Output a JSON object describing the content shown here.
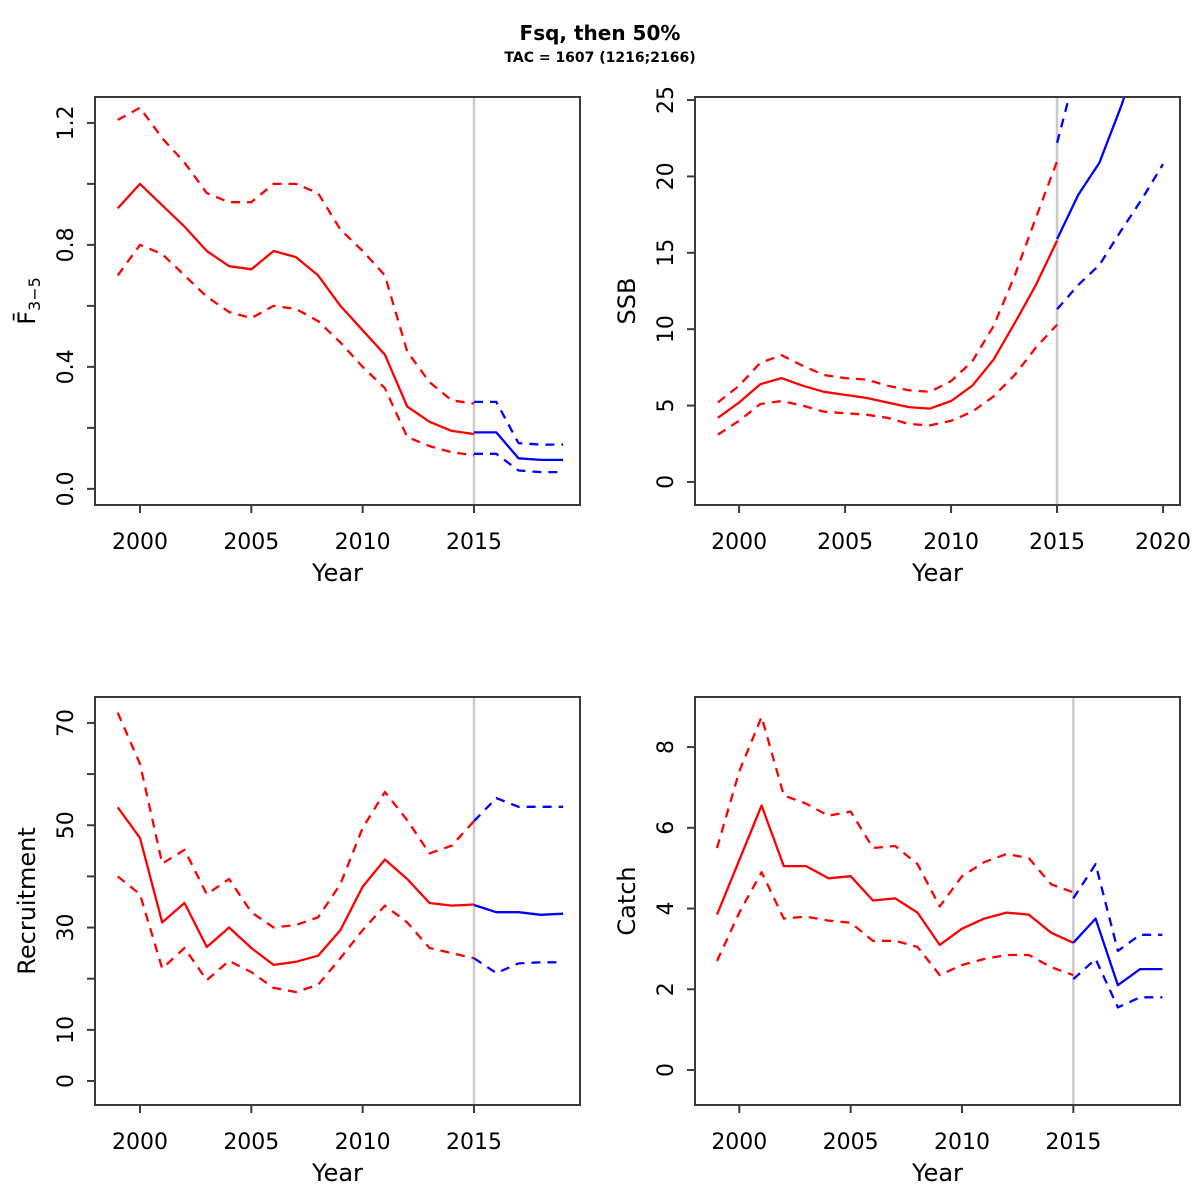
{
  "figure": {
    "title": "Fsq, then 50%",
    "subtitle": "TAC = 1607 (1216;2166)",
    "colors": {
      "historical": "#ff0000",
      "projection": "#0000ff",
      "forecast_divider": "#cbcbcb",
      "axis": "#3a3a3a"
    }
  },
  "chart_data": [
    {
      "id": "fbar",
      "type": "line",
      "xlabel": "Year",
      "ylabel": "F̄",
      "ylabel_sub": "3−5",
      "xlim": [
        1997.98,
        2019.76
      ],
      "ylim": [
        -0.053,
        1.285
      ],
      "vline_x": 2015,
      "xticks": [
        {
          "v": 2000,
          "label": "2000"
        },
        {
          "v": 2005,
          "label": "2005"
        },
        {
          "v": 2010,
          "label": "2010"
        },
        {
          "v": 2015,
          "label": "2015"
        }
      ],
      "yticks": [
        {
          "v": 0,
          "label": "0.0"
        },
        {
          "v": 0.2,
          "label": ""
        },
        {
          "v": 0.4,
          "label": "0.4"
        },
        {
          "v": 0.6,
          "label": ""
        },
        {
          "v": 0.8,
          "label": "0.8"
        },
        {
          "v": 1.0,
          "label": ""
        },
        {
          "v": 1.2,
          "label": "1.2"
        }
      ],
      "series": [
        {
          "name": "median-historical",
          "color": "#ff0000",
          "dash": false,
          "x": [
            1999,
            2000,
            2001,
            2002,
            2003,
            2004,
            2005,
            2006,
            2007,
            2008,
            2009,
            2010,
            2011,
            2012,
            2013,
            2014,
            2015
          ],
          "y": [
            0.92,
            1.0,
            0.93,
            0.86,
            0.78,
            0.73,
            0.72,
            0.78,
            0.76,
            0.7,
            0.6,
            0.52,
            0.44,
            0.27,
            0.22,
            0.19,
            0.18
          ]
        },
        {
          "name": "ci-upper-historical",
          "color": "#ff0000",
          "dash": true,
          "x": [
            1999,
            2000,
            2001,
            2002,
            2003,
            2004,
            2005,
            2006,
            2007,
            2008,
            2009,
            2010,
            2011,
            2012,
            2013,
            2014,
            2015
          ],
          "y": [
            1.21,
            1.25,
            1.15,
            1.07,
            0.97,
            0.94,
            0.94,
            1.0,
            1.0,
            0.97,
            0.85,
            0.78,
            0.7,
            0.45,
            0.35,
            0.29,
            0.28
          ]
        },
        {
          "name": "ci-lower-historical",
          "color": "#ff0000",
          "dash": true,
          "x": [
            1999,
            2000,
            2001,
            2002,
            2003,
            2004,
            2005,
            2006,
            2007,
            2008,
            2009,
            2010,
            2011,
            2012,
            2013,
            2014,
            2015
          ],
          "y": [
            0.7,
            0.8,
            0.77,
            0.7,
            0.63,
            0.58,
            0.56,
            0.6,
            0.59,
            0.55,
            0.48,
            0.4,
            0.33,
            0.17,
            0.14,
            0.12,
            0.11
          ]
        },
        {
          "name": "median-projection",
          "color": "#0000ff",
          "dash": false,
          "x": [
            2015,
            2016,
            2017,
            2018,
            2019
          ],
          "y": [
            0.185,
            0.185,
            0.1,
            0.095,
            0.095
          ]
        },
        {
          "name": "ci-upper-projection",
          "color": "#0000ff",
          "dash": true,
          "x": [
            2015,
            2016,
            2017,
            2018,
            2019
          ],
          "y": [
            0.285,
            0.285,
            0.15,
            0.145,
            0.145
          ]
        },
        {
          "name": "ci-lower-projection",
          "color": "#0000ff",
          "dash": true,
          "x": [
            2015,
            2016,
            2017,
            2018,
            2019
          ],
          "y": [
            0.115,
            0.115,
            0.06,
            0.055,
            0.055
          ]
        }
      ]
    },
    {
      "id": "ssb",
      "type": "line",
      "xlabel": "Year",
      "ylabel": "SSB",
      "xlim": [
        1997.92,
        2020.8
      ],
      "ylim": [
        -1.51,
        25.2
      ],
      "vline_x": 2015,
      "xticks": [
        {
          "v": 2000,
          "label": "2000"
        },
        {
          "v": 2005,
          "label": "2005"
        },
        {
          "v": 2010,
          "label": "2010"
        },
        {
          "v": 2015,
          "label": "2015"
        },
        {
          "v": 2020,
          "label": "2020"
        }
      ],
      "yticks": [
        {
          "v": 0,
          "label": "0"
        },
        {
          "v": 5,
          "label": "5"
        },
        {
          "v": 10,
          "label": "10"
        },
        {
          "v": 15,
          "label": "15"
        },
        {
          "v": 20,
          "label": "20"
        },
        {
          "v": 25,
          "label": "25"
        }
      ],
      "series": [
        {
          "name": "median-historical",
          "color": "#ff0000",
          "dash": false,
          "x": [
            1999,
            2000,
            2001,
            2002,
            2003,
            2004,
            2005,
            2006,
            2007,
            2008,
            2009,
            2010,
            2011,
            2012,
            2013,
            2014,
            2015
          ],
          "y": [
            4.2,
            5.2,
            6.4,
            6.8,
            6.3,
            5.9,
            5.7,
            5.5,
            5.2,
            4.9,
            4.8,
            5.3,
            6.3,
            8.0,
            10.4,
            12.9,
            15.8
          ]
        },
        {
          "name": "ci-upper-historical",
          "color": "#ff0000",
          "dash": true,
          "x": [
            1999,
            2000,
            2001,
            2002,
            2003,
            2004,
            2005,
            2006,
            2007,
            2008,
            2009,
            2010,
            2011,
            2012,
            2013,
            2014,
            2015
          ],
          "y": [
            5.2,
            6.3,
            7.8,
            8.3,
            7.6,
            7.0,
            6.8,
            6.7,
            6.3,
            6.0,
            5.9,
            6.6,
            7.9,
            10.2,
            13.5,
            17.3,
            21.0
          ]
        },
        {
          "name": "ci-lower-historical",
          "color": "#ff0000",
          "dash": true,
          "x": [
            1999,
            2000,
            2001,
            2002,
            2003,
            2004,
            2005,
            2006,
            2007,
            2008,
            2009,
            2010,
            2011,
            2012,
            2013,
            2014,
            2015
          ],
          "y": [
            3.1,
            4.0,
            5.1,
            5.3,
            5.0,
            4.6,
            4.5,
            4.4,
            4.2,
            3.8,
            3.7,
            4.0,
            4.6,
            5.6,
            7.0,
            8.8,
            10.3
          ]
        },
        {
          "name": "median-projection",
          "color": "#0000ff",
          "dash": false,
          "x": [
            2015,
            2016,
            2017,
            2018,
            2019
          ],
          "y": [
            15.9,
            18.8,
            20.9,
            24.5,
            28.5
          ]
        },
        {
          "name": "ci-upper-projection",
          "color": "#0000ff",
          "dash": true,
          "x": [
            2015,
            2016
          ],
          "y": [
            22.2,
            27.5
          ]
        },
        {
          "name": "ci-lower-projection",
          "color": "#0000ff",
          "dash": true,
          "x": [
            2015,
            2016,
            2017,
            2018,
            2019,
            2020
          ],
          "y": [
            11.3,
            12.9,
            14.2,
            16.4,
            18.5,
            20.8
          ]
        }
      ]
    },
    {
      "id": "recruitment",
      "type": "line",
      "xlabel": "Year",
      "ylabel": "Recruitment",
      "xlim": [
        1997.98,
        2019.76
      ],
      "ylim": [
        -4.69,
        75.07
      ],
      "vline_x": 2015,
      "xticks": [
        {
          "v": 2000,
          "label": "2000"
        },
        {
          "v": 2005,
          "label": "2005"
        },
        {
          "v": 2010,
          "label": "2010"
        },
        {
          "v": 2015,
          "label": "2015"
        }
      ],
      "yticks": [
        {
          "v": 0,
          "label": "0"
        },
        {
          "v": 10,
          "label": "10"
        },
        {
          "v": 20,
          "label": ""
        },
        {
          "v": 30,
          "label": "30"
        },
        {
          "v": 40,
          "label": ""
        },
        {
          "v": 50,
          "label": "50"
        },
        {
          "v": 60,
          "label": ""
        },
        {
          "v": 70,
          "label": "70"
        }
      ],
      "series": [
        {
          "name": "median-historical",
          "color": "#ff0000",
          "dash": false,
          "x": [
            1999,
            2000,
            2001,
            2002,
            2003,
            2004,
            2005,
            2006,
            2007,
            2008,
            2009,
            2010,
            2011,
            2012,
            2013,
            2014,
            2015
          ],
          "y": [
            53.5,
            47.5,
            31.0,
            34.8,
            26.2,
            30.0,
            26.0,
            22.7,
            23.3,
            24.5,
            29.5,
            38.0,
            43.3,
            39.5,
            34.8,
            34.3,
            34.5
          ]
        },
        {
          "name": "ci-upper-historical",
          "color": "#ff0000",
          "dash": true,
          "x": [
            1999,
            2000,
            2001,
            2002,
            2003,
            2004,
            2005,
            2006,
            2007,
            2008,
            2009,
            2010,
            2011,
            2012,
            2013,
            2014,
            2015
          ],
          "y": [
            72.0,
            62.0,
            42.5,
            45.2,
            36.5,
            39.5,
            33.0,
            30.0,
            30.5,
            32.0,
            38.5,
            49.5,
            56.5,
            51.0,
            44.5,
            46.0,
            50.8
          ]
        },
        {
          "name": "ci-lower-historical",
          "color": "#ff0000",
          "dash": true,
          "x": [
            1999,
            2000,
            2001,
            2002,
            2003,
            2004,
            2005,
            2006,
            2007,
            2008,
            2009,
            2010,
            2011,
            2012,
            2013,
            2014,
            2015
          ],
          "y": [
            40.0,
            36.5,
            22.0,
            26.0,
            19.7,
            23.5,
            21.3,
            18.2,
            17.4,
            18.8,
            24.0,
            29.5,
            34.3,
            31.0,
            26.0,
            25.0,
            24.0
          ]
        },
        {
          "name": "median-projection",
          "color": "#0000ff",
          "dash": false,
          "x": [
            2015,
            2016,
            2017,
            2018,
            2019
          ],
          "y": [
            34.4,
            33.0,
            33.0,
            32.5,
            32.7
          ]
        },
        {
          "name": "ci-upper-projection",
          "color": "#0000ff",
          "dash": true,
          "x": [
            2015,
            2016,
            2017,
            2018,
            2019
          ],
          "y": [
            50.8,
            55.3,
            53.6,
            53.6,
            53.6
          ]
        },
        {
          "name": "ci-lower-projection",
          "color": "#0000ff",
          "dash": true,
          "x": [
            2015,
            2016,
            2017,
            2018,
            2019
          ],
          "y": [
            24.0,
            21.1,
            23.0,
            23.2,
            23.2
          ]
        }
      ]
    },
    {
      "id": "catch",
      "type": "line",
      "xlabel": "Year",
      "ylabel": "Catch",
      "xlim": [
        1998.01,
        2019.79
      ],
      "ylim": [
        -0.867,
        9.24
      ],
      "vline_x": 2015,
      "xticks": [
        {
          "v": 2000,
          "label": "2000"
        },
        {
          "v": 2005,
          "label": "2005"
        },
        {
          "v": 2010,
          "label": "2010"
        },
        {
          "v": 2015,
          "label": "2015"
        }
      ],
      "yticks": [
        {
          "v": 0,
          "label": "0"
        },
        {
          "v": 2,
          "label": "2"
        },
        {
          "v": 4,
          "label": "4"
        },
        {
          "v": 6,
          "label": "6"
        },
        {
          "v": 8,
          "label": "8"
        }
      ],
      "series": [
        {
          "name": "median-historical",
          "color": "#ff0000",
          "dash": false,
          "x": [
            1999,
            2000,
            2001,
            2002,
            2003,
            2004,
            2005,
            2006,
            2007,
            2008,
            2009,
            2010,
            2011,
            2012,
            2013,
            2014,
            2015
          ],
          "y": [
            3.85,
            5.2,
            6.55,
            5.05,
            5.05,
            4.75,
            4.8,
            4.2,
            4.25,
            3.9,
            3.1,
            3.5,
            3.75,
            3.9,
            3.85,
            3.4,
            3.15
          ]
        },
        {
          "name": "ci-upper-historical",
          "color": "#ff0000",
          "dash": true,
          "x": [
            1999,
            2000,
            2001,
            2002,
            2003,
            2004,
            2005,
            2006,
            2007,
            2008,
            2009,
            2010,
            2011,
            2012,
            2013,
            2014,
            2015
          ],
          "y": [
            5.5,
            7.4,
            8.75,
            6.8,
            6.6,
            6.3,
            6.4,
            5.5,
            5.55,
            5.1,
            4.05,
            4.8,
            5.15,
            5.35,
            5.25,
            4.6,
            4.4
          ]
        },
        {
          "name": "ci-lower-historical",
          "color": "#ff0000",
          "dash": true,
          "x": [
            1999,
            2000,
            2001,
            2002,
            2003,
            2004,
            2005,
            2006,
            2007,
            2008,
            2009,
            2010,
            2011,
            2012,
            2013,
            2014,
            2015
          ],
          "y": [
            2.7,
            3.9,
            4.9,
            3.75,
            3.8,
            3.7,
            3.65,
            3.2,
            3.2,
            3.05,
            2.35,
            2.6,
            2.75,
            2.85,
            2.85,
            2.55,
            2.35
          ]
        },
        {
          "name": "median-projection",
          "color": "#0000ff",
          "dash": false,
          "x": [
            2015,
            2016,
            2017,
            2018,
            2019
          ],
          "y": [
            3.15,
            3.75,
            2.1,
            2.5,
            2.5
          ]
        },
        {
          "name": "ci-upper-projection",
          "color": "#0000ff",
          "dash": true,
          "x": [
            2015,
            2016,
            2017,
            2018,
            2019
          ],
          "y": [
            4.25,
            5.1,
            2.95,
            3.35,
            3.35
          ]
        },
        {
          "name": "ci-lower-projection",
          "color": "#0000ff",
          "dash": true,
          "x": [
            2015,
            2016,
            2017,
            2018,
            2019
          ],
          "y": [
            2.25,
            2.75,
            1.55,
            1.8,
            1.8
          ]
        }
      ]
    }
  ]
}
